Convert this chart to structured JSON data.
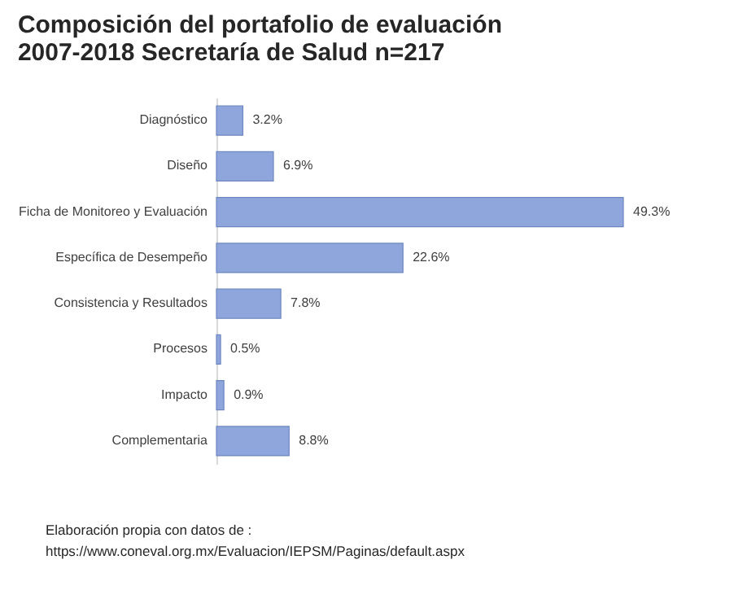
{
  "chart_data": {
    "type": "bar",
    "orientation": "horizontal",
    "title": [
      "Composición  del portafolio de evaluación",
      "2007-2018   Secretaría de Salud         n=217"
    ],
    "categories": [
      "Diagnóstico",
      "Diseño",
      "Ficha de Monitoreo y Evaluación",
      "Específica de Desempeño",
      "Consistencia y Resultados",
      "Procesos",
      "Impacto",
      "Complementaria"
    ],
    "values": [
      3.2,
      6.9,
      49.3,
      22.6,
      7.8,
      0.5,
      0.9,
      8.8
    ],
    "value_labels": [
      "3.2%",
      "6.9%",
      "49.3%",
      "22.6%",
      "7.8%",
      "0.5%",
      "0.9%",
      "8.8%"
    ],
    "color": "#8ea6db",
    "annotations": [
      "Elaboración propia con datos de :",
      "https://www.coneval.org.mx/Evaluacion/IEPSM/Paginas/default.aspx"
    ]
  }
}
